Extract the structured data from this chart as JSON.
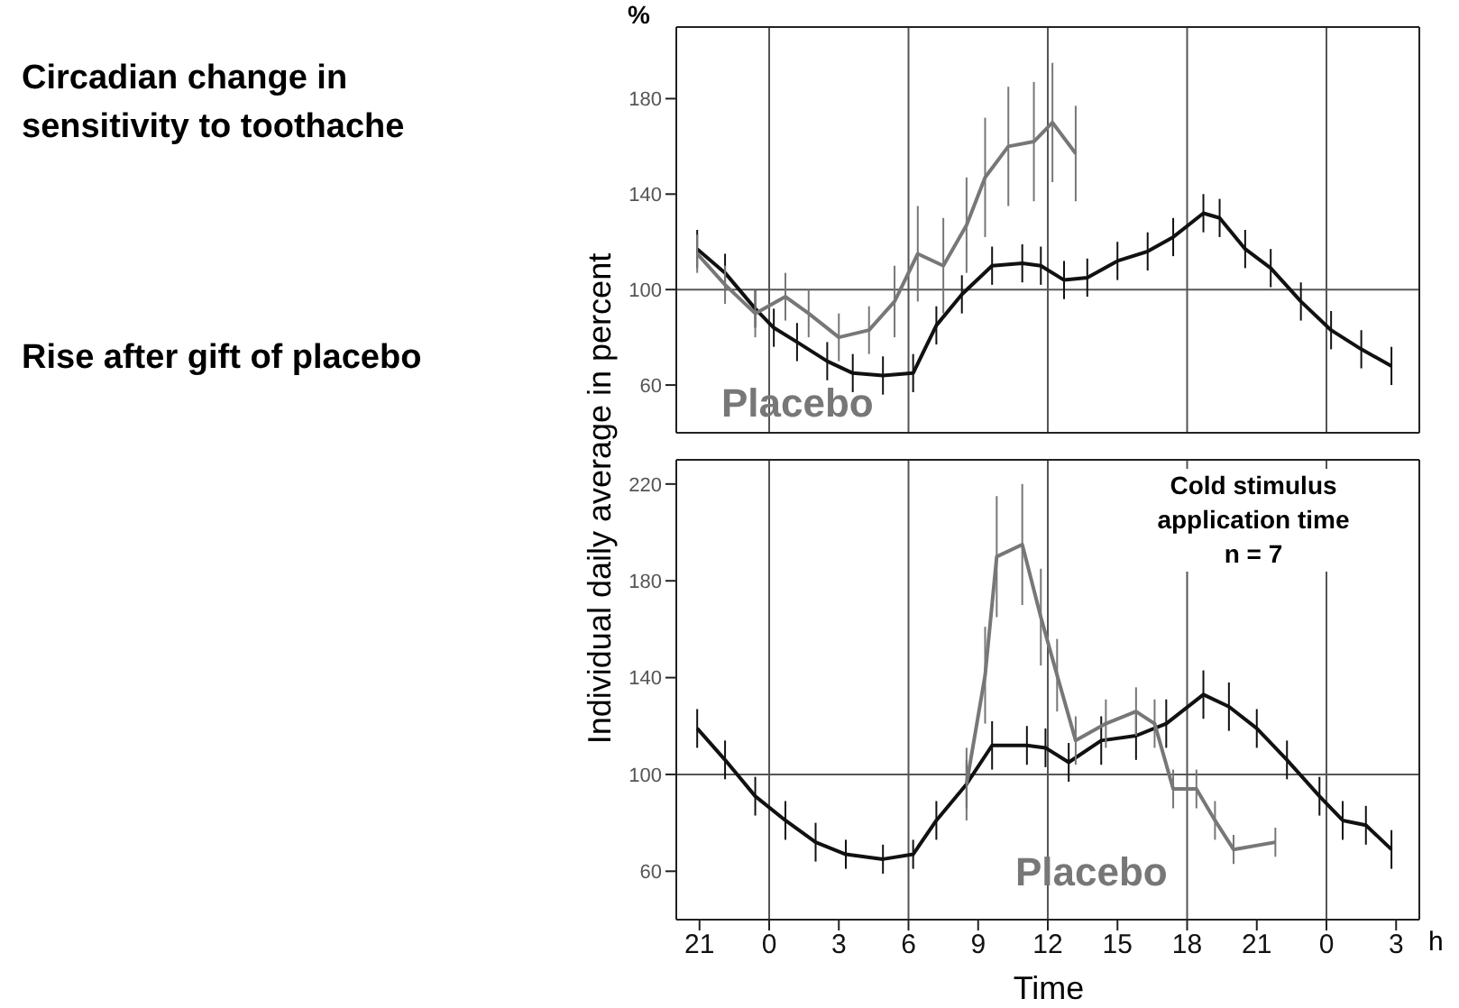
{
  "chart_data": [
    {
      "type": "other",
      "annotations": [
        "Circadian change in sensitivity to toothache",
        "Rise after gift of placebo"
      ]
    },
    {
      "type": "line",
      "ylabel": "%",
      "xlim": [
        "--01-01T20:00",
        "--01-03T04:00"
      ],
      "xticks": [
        {
          "value": "--01-01T21:00",
          "label": null
        },
        {
          "value": "--01-02T00:00",
          "label": null
        },
        {
          "value": "--01-02T03:00",
          "label": null
        },
        {
          "value": "--01-02T06:00",
          "label": null
        },
        {
          "value": "--01-02T09:00",
          "label": null
        },
        {
          "value": "--01-02T12:00",
          "label": null
        },
        {
          "value": "--01-02T15:00",
          "label": null
        },
        {
          "value": "--01-02T18:00",
          "label": null
        },
        {
          "value": "--01-02T21:00",
          "label": null
        },
        {
          "value": "--01-03T00:00",
          "label": null
        },
        {
          "value": "--01-03T03:00",
          "label": null
        }
      ],
      "ylim": [
        40,
        210
      ],
      "yticks": [
        60,
        100,
        140,
        180
      ],
      "tick_labels": "y",
      "ref_lines": [
        {
          "axis": "y",
          "value": 100
        },
        {
          "axis": "x",
          "value": "--01-02T00:00"
        },
        {
          "axis": "x",
          "value": "--01-02T06:00"
        },
        {
          "axis": "x",
          "value": "--01-02T12:00"
        },
        {
          "axis": "x",
          "value": "--01-02T18:00"
        },
        {
          "axis": "x",
          "value": "--01-03T00:00"
        }
      ],
      "series": [
        {
          "color": "#111111",
          "x": [
            "--01-01T20:54",
            "--01-01T22:06",
            "--01-01T23:24",
            "--01-02T00:12",
            "--01-02T01:12",
            "--01-02T02:30",
            "--01-02T03:36",
            "--01-02T04:54",
            "--01-02T06:12",
            "--01-02T07:12",
            "--01-02T08:18",
            "--01-02T09:36",
            "--01-02T10:54",
            "--01-02T11:42",
            "--01-02T12:42",
            "--01-02T13:42",
            "--01-02T15:00",
            "--01-02T16:18",
            "--01-02T17:24",
            "--01-02T18:42",
            "--01-02T19:24",
            "--01-02T20:30",
            "--01-02T21:36",
            "--01-02T22:54",
            "--01-03T00:12",
            "--01-03T01:30",
            "--01-03T02:48"
          ],
          "values": [
            117,
            107,
            92,
            84,
            78,
            70,
            65,
            64,
            65,
            85,
            98,
            110,
            111,
            110,
            104,
            105,
            112,
            116,
            122,
            132,
            130,
            117,
            109,
            95,
            83,
            75,
            68
          ],
          "errors": [
            8,
            8,
            8,
            8,
            8,
            8,
            8,
            8,
            8,
            8,
            8,
            8,
            8,
            8,
            8,
            8,
            8,
            8,
            8,
            8,
            8,
            8,
            8,
            8,
            8,
            8,
            8
          ]
        },
        {
          "name": "Placebo",
          "color": "#777777",
          "x": [
            "--01-01T20:54",
            "--01-01T22:06",
            "--01-01T23:24",
            "--01-02T00:42",
            "--01-02T01:42",
            "--01-02T03:00",
            "--01-02T04:18",
            "--01-02T05:24",
            "--01-02T06:24",
            "--01-02T07:30",
            "--01-02T08:30",
            "--01-02T09:18",
            "--01-02T10:18",
            "--01-02T11:24",
            "--01-02T12:12",
            "--01-02T13:12"
          ],
          "values": [
            115,
            102,
            90,
            97,
            90,
            80,
            83,
            95,
            115,
            110,
            127,
            147,
            160,
            162,
            170,
            157
          ],
          "errors": [
            8,
            8,
            10,
            10,
            10,
            10,
            10,
            15,
            20,
            20,
            20,
            25,
            25,
            25,
            25,
            20
          ]
        }
      ]
    },
    {
      "type": "line",
      "xlabel": "Time",
      "ylabel": "Individual daily average in percent",
      "annotations": [
        "Cold stimulus application time",
        "n = 7",
        "h"
      ],
      "xlim": [
        "--01-01T20:00",
        "--01-03T04:00"
      ],
      "xticks": [
        {
          "value": "--01-01T21:00",
          "label": "21"
        },
        {
          "value": "--01-02T00:00",
          "label": "0"
        },
        {
          "value": "--01-02T03:00",
          "label": "3"
        },
        {
          "value": "--01-02T06:00",
          "label": "6"
        },
        {
          "value": "--01-02T09:00",
          "label": "9"
        },
        {
          "value": "--01-02T12:00",
          "label": "12"
        },
        {
          "value": "--01-02T15:00",
          "label": "15"
        },
        {
          "value": "--01-02T18:00",
          "label": "18"
        },
        {
          "value": "--01-02T21:00",
          "label": "21"
        },
        {
          "value": "--01-03T00:00",
          "label": "0"
        },
        {
          "value": "--01-03T03:00",
          "label": "3"
        }
      ],
      "ylim": [
        40,
        230
      ],
      "yticks": [
        60,
        100,
        140,
        180,
        220
      ],
      "ref_lines": [
        {
          "axis": "y",
          "value": 100
        },
        {
          "axis": "x",
          "value": "--01-02T00:00"
        },
        {
          "axis": "x",
          "value": "--01-02T06:00"
        },
        {
          "axis": "x",
          "value": "--01-02T12:00"
        },
        {
          "axis": "x",
          "value": "--01-02T18:00"
        },
        {
          "axis": "x",
          "value": "--01-03T00:00"
        }
      ],
      "series": [
        {
          "color": "#111111",
          "x": [
            "--01-01T20:54",
            "--01-01T22:06",
            "--01-01T23:24",
            "--01-02T00:42",
            "--01-02T02:00",
            "--01-02T03:18",
            "--01-02T04:54",
            "--01-02T06:12",
            "--01-02T07:12",
            "--01-02T08:30",
            "--01-02T09:36",
            "--01-02T11:06",
            "--01-02T11:54",
            "--01-02T12:54",
            "--01-02T14:18",
            "--01-02T15:48",
            "--01-02T17:06",
            "--01-02T18:42",
            "--01-02T19:48",
            "--01-02T21:00",
            "--01-02T22:18",
            "--01-02T23:42",
            "--01-03T00:42",
            "--01-03T01:42",
            "--01-03T02:48"
          ],
          "values": [
            119,
            106,
            91,
            81,
            72,
            67,
            65,
            67,
            81,
            96,
            112,
            112,
            111,
            105,
            114,
            116,
            121,
            133,
            128,
            119,
            106,
            91,
            81,
            79,
            69
          ],
          "errors": [
            8,
            8,
            8,
            8,
            8,
            6,
            6,
            6,
            8,
            10,
            10,
            8,
            8,
            8,
            10,
            10,
            10,
            10,
            10,
            8,
            8,
            8,
            8,
            8,
            8
          ]
        },
        {
          "name": "Placebo",
          "color": "#777777",
          "x": [
            "--01-02T08:30",
            "--01-02T09:18",
            "--01-02T09:48",
            "--01-02T10:54",
            "--01-02T11:42",
            "--01-02T12:24",
            "--01-02T13:12",
            "--01-02T14:30",
            "--01-02T15:48",
            "--01-02T16:36",
            "--01-02T17:24",
            "--01-02T18:24",
            "--01-02T19:12",
            "--01-02T20:00",
            "--01-02T21:48"
          ],
          "values": [
            96,
            141,
            190,
            195,
            165,
            141,
            114,
            121,
            126,
            121,
            94,
            94,
            81,
            69,
            72
          ],
          "errors": [
            15,
            20,
            25,
            25,
            20,
            15,
            10,
            10,
            10,
            10,
            8,
            8,
            8,
            6,
            6
          ]
        }
      ]
    }
  ]
}
